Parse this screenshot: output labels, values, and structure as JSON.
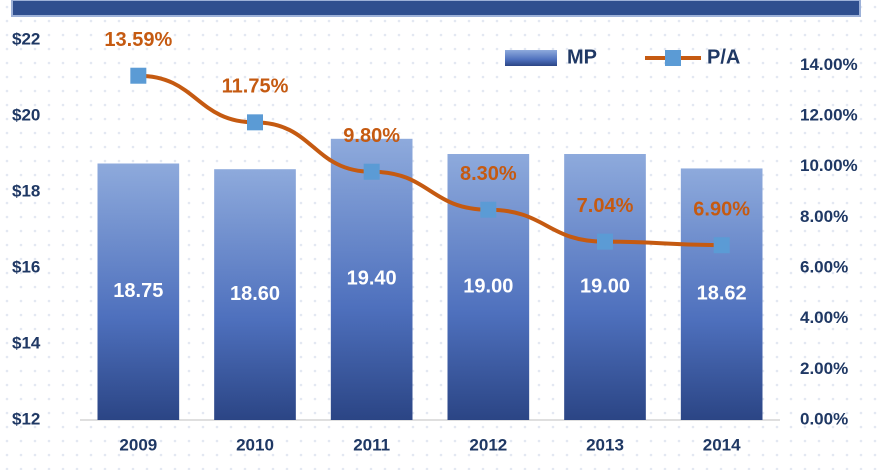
{
  "chart_data": {
    "type": "bar",
    "categories": [
      "2009",
      "2010",
      "2011",
      "2012",
      "2013",
      "2014"
    ],
    "series": [
      {
        "name": "MP",
        "type": "bar",
        "color": "#4a6cb8",
        "values": [
          18.75,
          18.6,
          19.4,
          19.0,
          19.0,
          18.62
        ],
        "value_labels": [
          "18.75",
          "18.60",
          "19.40",
          "19.00",
          "19.00",
          "18.62"
        ]
      },
      {
        "name": "P/A",
        "type": "line",
        "axis": "y2",
        "color": "#c55a11",
        "marker_color": "#5b9bd5",
        "values": [
          13.59,
          11.75,
          9.8,
          8.3,
          7.04,
          6.9
        ],
        "value_labels": [
          "13.59%",
          "11.75%",
          "9.80%",
          "8.30%",
          "7.04%",
          "6.90%"
        ]
      }
    ],
    "ylim": [
      12,
      22
    ],
    "yticks": [
      {
        "value": 12,
        "label": "$12"
      },
      {
        "value": 14,
        "label": "$14"
      },
      {
        "value": 16,
        "label": "$16"
      },
      {
        "value": 18,
        "label": "$18"
      },
      {
        "value": 20,
        "label": "$20"
      },
      {
        "value": 22,
        "label": "$22"
      }
    ],
    "y2lim": [
      0,
      15
    ],
    "y2ticks": [
      {
        "value": 0,
        "label": "0.00%"
      },
      {
        "value": 2,
        "label": "2.00%"
      },
      {
        "value": 4,
        "label": "4.00%"
      },
      {
        "value": 6,
        "label": "6.00%"
      },
      {
        "value": 8,
        "label": "8.00%"
      },
      {
        "value": 10,
        "label": "10.00%"
      },
      {
        "value": 12,
        "label": "12.00%"
      },
      {
        "value": 14,
        "label": "14.00%"
      }
    ],
    "legend": "top-right"
  }
}
